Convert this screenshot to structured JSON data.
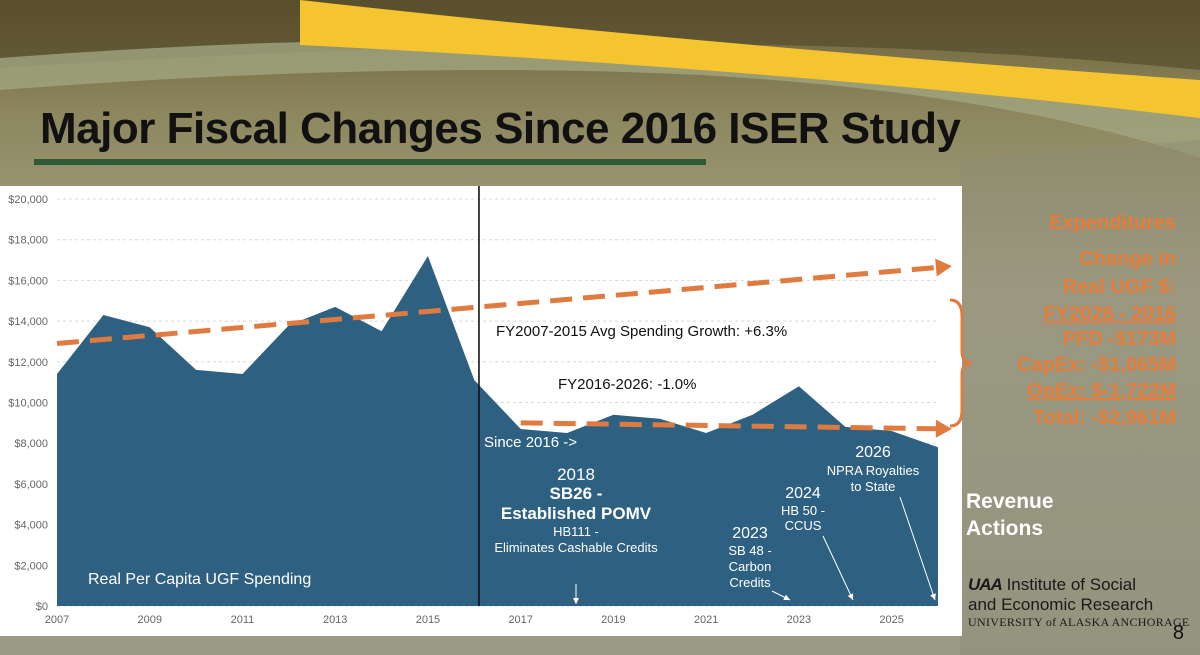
{
  "slide": {
    "title": "Major Fiscal Changes Since 2016 ISER Study",
    "page_number": "8"
  },
  "sidebar": {
    "expenditures": "Expenditures",
    "change_in": "Change in",
    "real_ugf": "Real UGF $:",
    "fy_range": "FY2026 - 2016",
    "pfd": "PFD -$173M",
    "capex": "CapEx: -$1,065M",
    "opex": "OpEx: $-1,722M",
    "total": "Total: -$2,961M",
    "revenue_line1": "Revenue",
    "revenue_line2": "Actions"
  },
  "logo": {
    "uaa": "UAA",
    "line1": "Institute of Social",
    "line2": "and Economic Research",
    "line3": "UNIVERSITY of ALASKA ANCHORAGE"
  },
  "colors": {
    "area": "#2e6082",
    "trend": "#e07b3f",
    "yellow": "#f4c52e",
    "accent_text": "#e67c3a"
  },
  "chart_data": {
    "type": "area",
    "title": "Real Per Capita UGF Spending",
    "x": [
      2007,
      2008,
      2009,
      2010,
      2011,
      2012,
      2013,
      2014,
      2015,
      2016,
      2017,
      2018,
      2019,
      2020,
      2021,
      2022,
      2023,
      2024,
      2025,
      2026
    ],
    "values": [
      11400,
      14300,
      13700,
      11600,
      11400,
      13800,
      14700,
      13500,
      17200,
      11100,
      8700,
      8500,
      9400,
      9200,
      8500,
      9400,
      10800,
      8800,
      8600,
      7800
    ],
    "xlim": [
      2007,
      2026
    ],
    "ylim": [
      0,
      20000
    ],
    "x_ticks": [
      "2007",
      "2009",
      "2011",
      "2013",
      "2015",
      "2017",
      "2019",
      "2021",
      "2023",
      "2025"
    ],
    "y_ticks": [
      "$0",
      "$2,000",
      "$4,000",
      "$6,000",
      "$8,000",
      "$10,000",
      "$12,000",
      "$14,000",
      "$16,000",
      "$18,000",
      "$20,000"
    ],
    "trend_lines": [
      {
        "name": "FY2007-2015 Avg Spending Growth: +6.3%",
        "from": [
          2007,
          12900
        ],
        "to": [
          2026.3,
          16700
        ]
      },
      {
        "name": "FY2016-2026: -1.0%",
        "from": [
          2017,
          9000
        ],
        "to": [
          2026.3,
          8700
        ]
      }
    ],
    "divider_year": 2016.1,
    "annotations": {
      "avg_growth": "FY2007-2015 Avg Spending Growth: +6.3%",
      "decline": "FY2016-2026: -1.0%",
      "since": "Since 2016 ->",
      "a2018_year": "2018",
      "a2018_bill": "SB26 -",
      "a2018_desc": "Established POMV",
      "a2018_hb": "HB111 -",
      "a2018_hb_desc": "Eliminates Cashable Credits",
      "a2023_year": "2023",
      "a2023_bill": "SB 48 -",
      "a2023_d1": "Carbon",
      "a2023_d2": "Credits",
      "a2024_year": "2024",
      "a2024_bill": "HB 50 -",
      "a2024_d1": "CCUS",
      "a2026_year": "2026",
      "a2026_d1": "NPRA Royalties",
      "a2026_d2": "to State",
      "series_label": "Real Per Capita UGF Spending"
    }
  }
}
